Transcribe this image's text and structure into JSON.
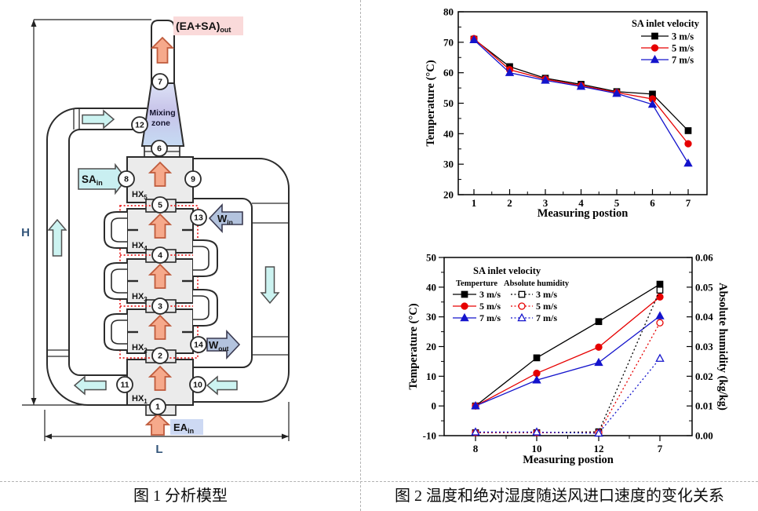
{
  "figure1": {
    "caption": "图 1 分析模型",
    "labels": {
      "h_dim": "H",
      "l_dim": "L",
      "mixing_line1": "Mixing",
      "mixing_line2": "zone",
      "outlet": {
        "main": "(EA+SA)",
        "sub": "out"
      },
      "sa_in": {
        "main": "SA",
        "sub": "in"
      },
      "ea_in": {
        "main": "EA",
        "sub": "in"
      },
      "w_in": {
        "main": "W",
        "sub": "in"
      },
      "w_out": {
        "main": "W",
        "sub": "out"
      }
    },
    "hx_units": [
      {
        "main": "HX",
        "sub": "5"
      },
      {
        "main": "HX",
        "sub": "4"
      },
      {
        "main": "HX",
        "sub": "3"
      },
      {
        "main": "HX",
        "sub": "2"
      },
      {
        "main": "HX",
        "sub": "1"
      }
    ],
    "nodes": [
      "1",
      "2",
      "3",
      "4",
      "5",
      "6",
      "7",
      "8",
      "9",
      "10",
      "11",
      "12",
      "13",
      "14"
    ]
  },
  "figure2": {
    "caption": "图 2 温度和绝对湿度随送风进口速度的变化关系"
  },
  "chart_data": [
    {
      "type": "line",
      "title": "",
      "legend_title": "SA inlet velocity",
      "legend_position": "top-right",
      "xlabel": "Measuring postion",
      "ylabel": "Temperature (°C)",
      "x": [
        1,
        2,
        3,
        4,
        5,
        6,
        7
      ],
      "ylim": [
        20,
        80
      ],
      "ytick_step": 10,
      "grid": false,
      "series": [
        {
          "name": "3 m/s",
          "color": "#000000",
          "marker": "square",
          "line": "solid",
          "values": [
            71.0,
            62.0,
            58.2,
            56.2,
            53.8,
            53.0,
            41.0
          ]
        },
        {
          "name": "5 m/s",
          "color": "#e60000",
          "marker": "circle",
          "line": "solid",
          "values": [
            71.2,
            61.0,
            57.9,
            55.8,
            53.5,
            51.4,
            36.7
          ]
        },
        {
          "name": "7 m/s",
          "color": "#1414cc",
          "marker": "triangle",
          "line": "solid",
          "values": [
            70.8,
            60.0,
            57.5,
            55.5,
            53.2,
            49.6,
            30.3
          ]
        }
      ]
    },
    {
      "type": "line",
      "title": "",
      "legend_title": "SA inlet velocity",
      "legend_position": "top-left",
      "legend_col1": "Temperture",
      "legend_col2": "Absolute humidity",
      "xlabel": "Measuring postion",
      "ylabel": "Temperature (°C)",
      "y2label": "Absolute humidity (kg/kg)",
      "categories": [
        "8",
        "10",
        "12",
        "7"
      ],
      "ylim": [
        -10,
        50
      ],
      "ytick_step": 10,
      "y2lim": [
        0,
        0.06
      ],
      "y2tick_step": 0.01,
      "grid": false,
      "temperature_series": [
        {
          "name": "3 m/s",
          "color": "#000000",
          "marker": "square",
          "line": "solid",
          "values": [
            0.0,
            16.2,
            28.4,
            41.0
          ]
        },
        {
          "name": "5 m/s",
          "color": "#e60000",
          "marker": "circle",
          "line": "solid",
          "values": [
            0.0,
            11.0,
            19.8,
            36.7
          ]
        },
        {
          "name": "7 m/s",
          "color": "#1414cc",
          "marker": "triangle",
          "line": "solid",
          "values": [
            0.0,
            8.7,
            14.6,
            30.3
          ]
        }
      ],
      "humidity_series": [
        {
          "name": "3 m/s",
          "color": "#000000",
          "marker": "square",
          "line": "dotted",
          "values": [
            0.001,
            0.001,
            0.0013,
            0.049
          ]
        },
        {
          "name": "5 m/s",
          "color": "#e60000",
          "marker": "circle",
          "line": "dotted",
          "values": [
            0.001,
            0.001,
            0.001,
            0.038
          ]
        },
        {
          "name": "7 m/s",
          "color": "#1414cc",
          "marker": "triangle",
          "line": "dotted",
          "values": [
            0.0012,
            0.0012,
            0.0008,
            0.026
          ]
        }
      ]
    }
  ],
  "colors": {
    "hx_fill": "#ebebeb",
    "outline": "#2b2b2b",
    "orange_fill": "#f6a98b",
    "orange_stroke": "#bf5b3c",
    "cyan_fill": "#ccf3f1",
    "cyan_stroke": "#4f4f4f",
    "water_fill": "#b3c3de",
    "water_stroke": "#3a3a50",
    "outlet_bg": "#fadada",
    "ea_bg": "#cdd9f3",
    "red_dotted": "#e82020",
    "dim_text": "#33557a"
  }
}
